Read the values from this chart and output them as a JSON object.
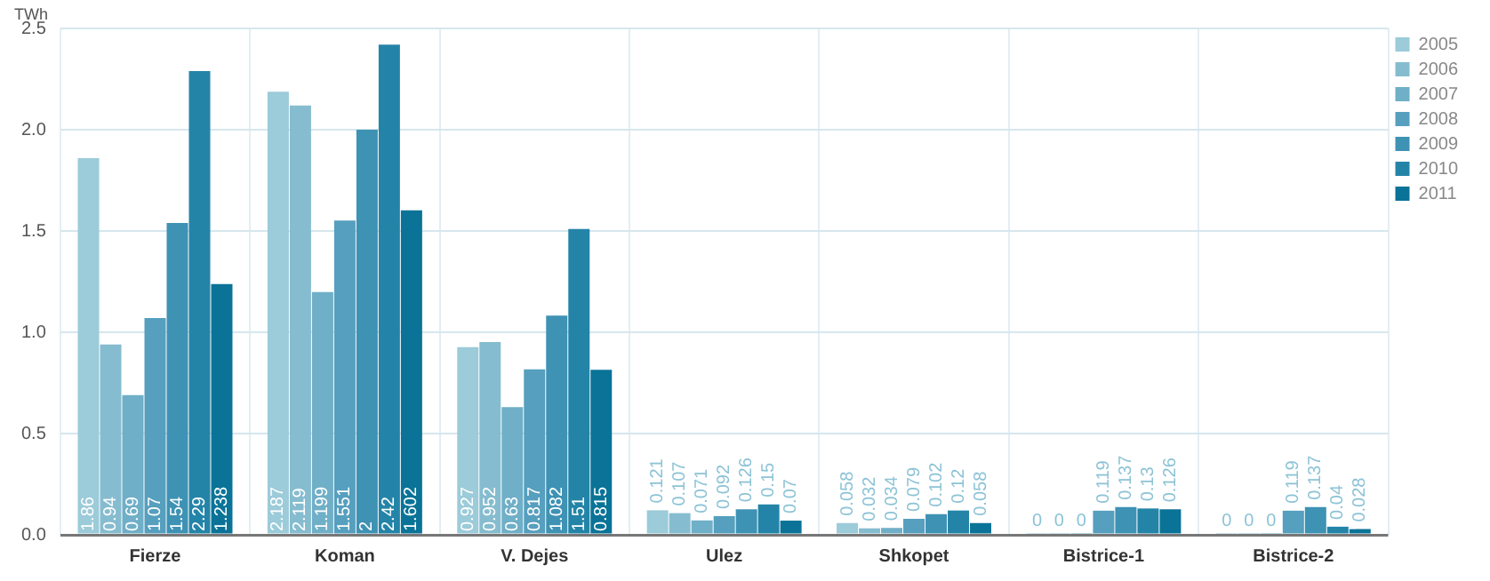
{
  "chart_data": {
    "type": "bar",
    "ylabel": "TWh",
    "categories": [
      "Fierze",
      "Koman",
      "V. Dejes",
      "Ulez",
      "Shkopet",
      "Bistrice-1",
      "Bistrice-2"
    ],
    "series": [
      {
        "name": "2005",
        "color": "#9ccbd9",
        "values": [
          1.86,
          2.187,
          0.927,
          0.121,
          0.058,
          0,
          0
        ]
      },
      {
        "name": "2006",
        "color": "#86bccf",
        "values": [
          0.94,
          2.119,
          0.952,
          0.107,
          0.032,
          0,
          0
        ]
      },
      {
        "name": "2007",
        "color": "#6fafc7",
        "values": [
          0.69,
          1.199,
          0.63,
          0.071,
          0.034,
          0,
          0
        ]
      },
      {
        "name": "2008",
        "color": "#569fbe",
        "values": [
          1.07,
          1.551,
          0.817,
          0.092,
          0.079,
          0.119,
          0.119
        ]
      },
      {
        "name": "2009",
        "color": "#3e92b4",
        "values": [
          1.54,
          2,
          1.082,
          0.126,
          0.102,
          0.137,
          0.137
        ]
      },
      {
        "name": "2010",
        "color": "#2484a8",
        "values": [
          2.29,
          2.42,
          1.51,
          0.15,
          0.12,
          0.13,
          0.04
        ]
      },
      {
        "name": "2011",
        "color": "#0a7397",
        "values": [
          1.238,
          1.602,
          0.815,
          0.07,
          0.058,
          0.126,
          0.028
        ]
      }
    ],
    "ylim": [
      0,
      2.5
    ],
    "yticks": [
      {
        "value": 0,
        "label": "0.0"
      },
      {
        "value": 0.5,
        "label": "0.5"
      },
      {
        "value": 1,
        "label": "1.0"
      },
      {
        "value": 1.5,
        "label": "1.5"
      },
      {
        "value": 2,
        "label": "2.0"
      },
      {
        "value": 2.5,
        "label": "2.5"
      }
    ],
    "grid": true,
    "legend": "top right",
    "data_labels": true
  }
}
